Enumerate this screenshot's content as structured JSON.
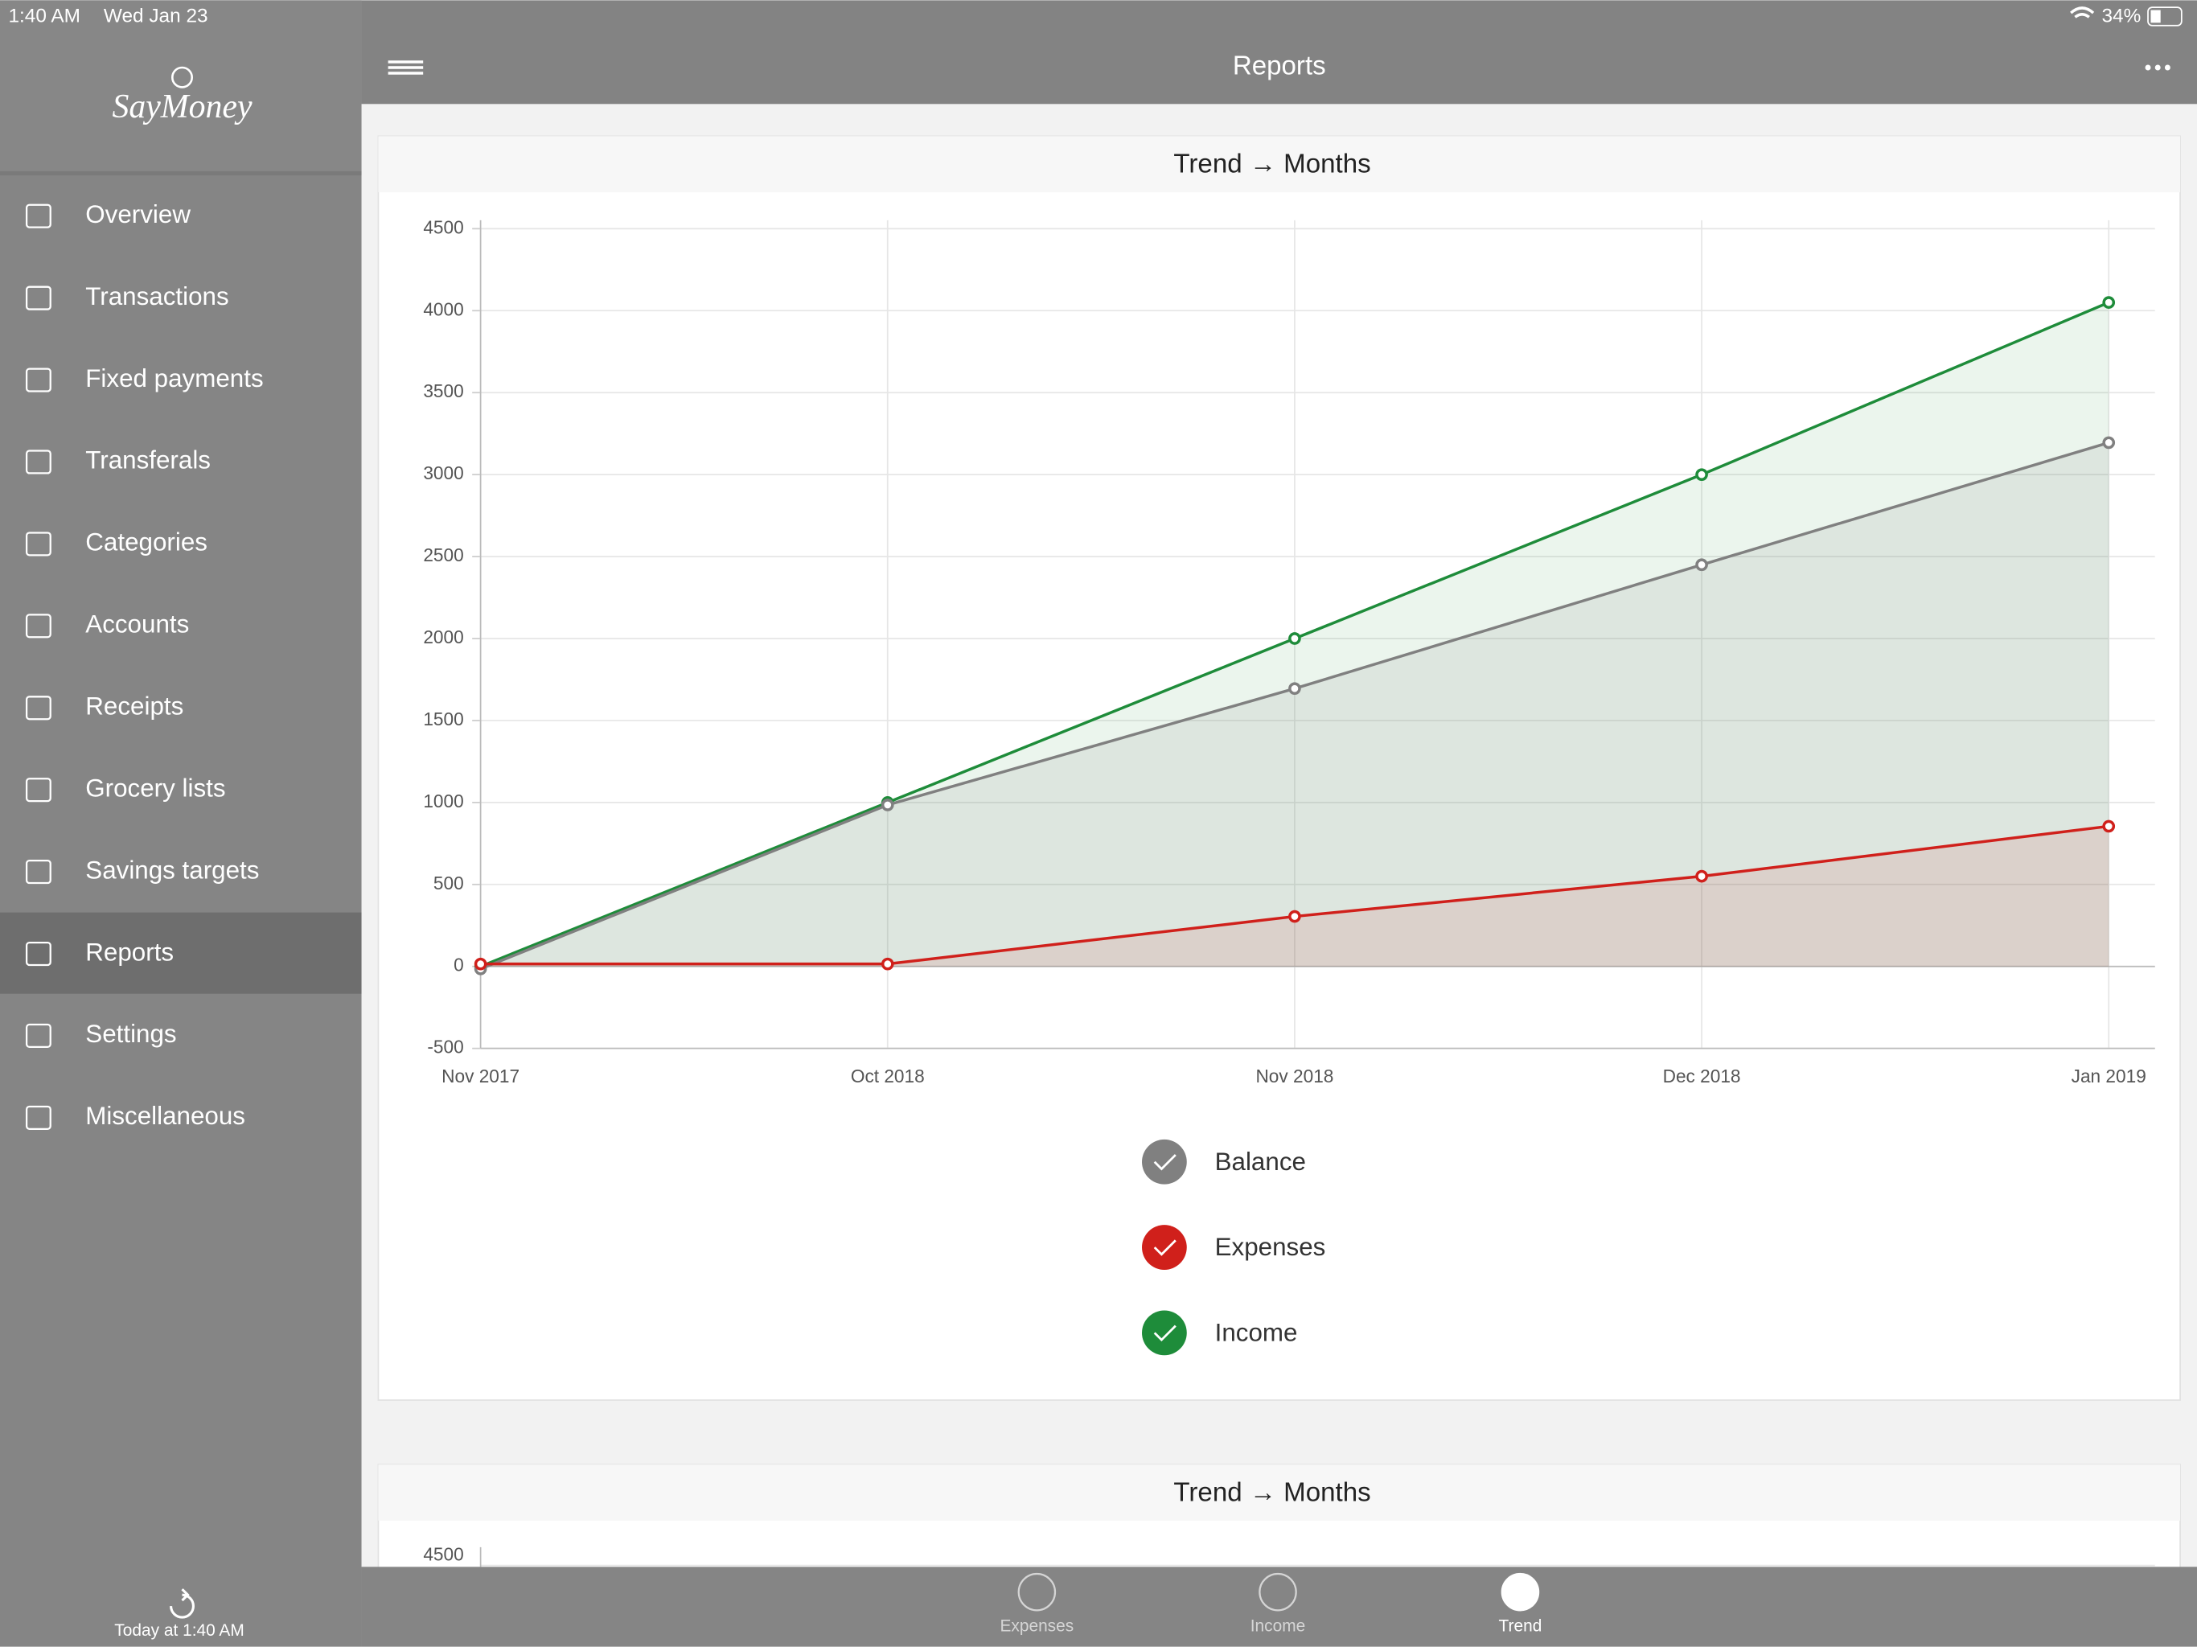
{
  "status_bar": {
    "time": "1:40 AM",
    "date": "Wed Jan 23",
    "battery": "34%"
  },
  "sidebar": {
    "logo": "SayMoney",
    "menu": [
      "Overview",
      "Transactions",
      "Fixed payments",
      "Transferals",
      "Categories",
      "Accounts",
      "Receipts",
      "Grocery lists",
      "Savings targets",
      "Reports",
      "Settings",
      "Miscellaneous"
    ],
    "footer": "Today at 1:40 AM"
  },
  "header": {
    "title": "Reports"
  },
  "chart_data": {
    "type": "line",
    "title": "Trend → Months",
    "categories": [
      "Nov 2017",
      "Oct 2018",
      "Nov 2018",
      "Dec 2018",
      "Jan 2019"
    ],
    "series": [
      {
        "name": "Balance",
        "color": "#808080",
        "values": [
          -15,
          985,
          1695,
          2450,
          3195
        ]
      },
      {
        "name": "Expenses",
        "color": "#d0201b",
        "values": [
          15,
          15,
          305,
          550,
          855
        ]
      },
      {
        "name": "Income",
        "color": "#1e8c3a",
        "values": [
          0,
          1000,
          2000,
          3000,
          4050
        ]
      }
    ],
    "ylim": [
      -500,
      4500
    ],
    "yticks": [
      -500,
      0,
      500,
      1000,
      1500,
      2000,
      2500,
      3000,
      3500,
      4000,
      4500
    ],
    "grid": true
  },
  "second_card": {
    "title": "Trend → Months",
    "yticks": [
      4500
    ]
  },
  "tabs": [
    "Expenses",
    "Income",
    "Trend"
  ]
}
